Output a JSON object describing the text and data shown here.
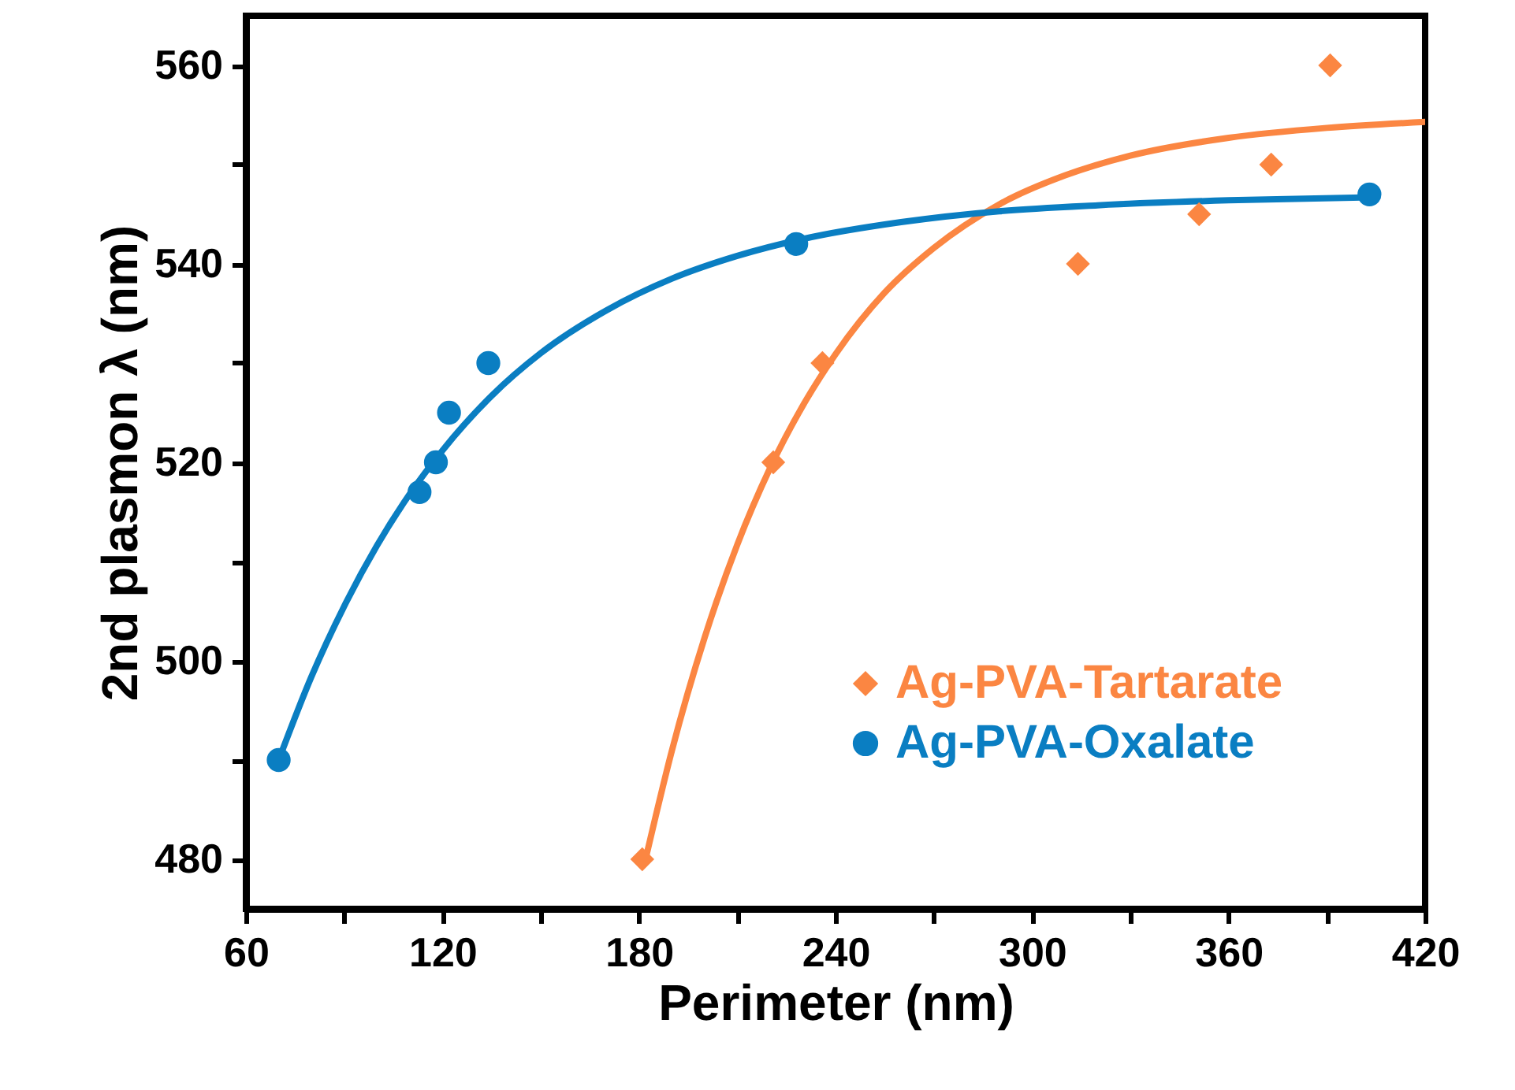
{
  "chart_data": {
    "type": "scatter",
    "xlabel": "Perimeter (nm)",
    "ylabel": "2nd plasmon λ (nm)",
    "xlim": [
      60,
      420
    ],
    "ylim": [
      475,
      565
    ],
    "xticks": [
      60,
      {
        "value": 90,
        "label": null
      },
      120,
      {
        "value": 150,
        "label": null
      },
      180,
      {
        "value": 210,
        "label": null
      },
      240,
      {
        "value": 270,
        "label": null
      },
      300,
      {
        "value": 330,
        "label": null
      },
      360,
      {
        "value": 390,
        "label": null
      },
      420
    ],
    "yticks": [
      480,
      {
        "value": 490,
        "label": null
      },
      500,
      {
        "value": 510,
        "label": null
      },
      520,
      {
        "value": 530,
        "label": null
      },
      540,
      {
        "value": 550,
        "label": null
      },
      560
    ],
    "legend": "bottom right",
    "series": [
      {
        "name": "Ag-PVA-Tartarate",
        "color": "#fb8642",
        "marker": "diamond",
        "x": [
          181,
          221,
          236,
          314,
          351,
          373,
          391
        ],
        "values": [
          480,
          520,
          530,
          540,
          545,
          550,
          560
        ]
      },
      {
        "name": "Ag-PVA-Oxalate",
        "color": "#0a7ec2",
        "marker": "circle",
        "x": [
          70,
          113,
          118,
          122,
          134,
          228,
          403
        ],
        "values": [
          490,
          517,
          520,
          525,
          530,
          542,
          547
        ]
      },
      {
        "type": "line",
        "color": "#fb8642",
        "x": [
          182,
          190,
          200,
          210,
          220,
          230,
          240,
          255,
          270,
          290,
          310,
          330,
          360,
          390,
          420
        ],
        "values": [
          480,
          490.9,
          502.3,
          511.7,
          519.4,
          525.7,
          530.9,
          537.1,
          541.6,
          546.0,
          548.9,
          550.9,
          552.7,
          553.7,
          554.3
        ]
      },
      {
        "type": "line",
        "color": "#0a7ec2",
        "x": [
          70,
          80,
          90,
          100,
          110,
          120,
          135,
          150,
          170,
          190,
          210,
          230,
          260,
          290,
          320,
          360,
          403
        ],
        "values": [
          490,
          498.4,
          505.5,
          511.6,
          516.8,
          521.2,
          526.7,
          531.0,
          535.3,
          538.5,
          540.8,
          542.5,
          544.2,
          545.3,
          545.9,
          546.4,
          546.7
        ]
      }
    ]
  }
}
